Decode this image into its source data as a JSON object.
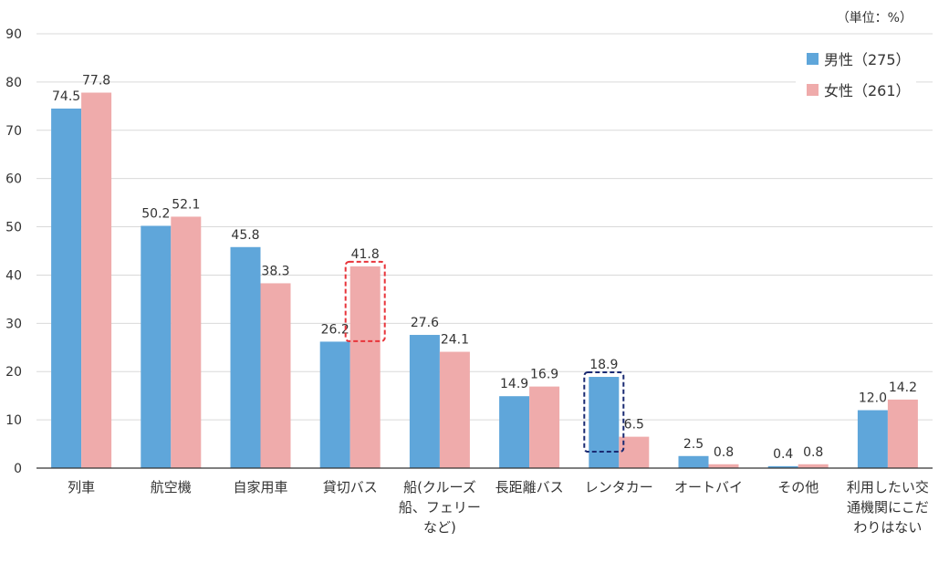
{
  "unit_note": "（単位：%）",
  "chart_data": {
    "type": "bar",
    "categories": [
      [
        "列車"
      ],
      [
        "航空機"
      ],
      [
        "自家用車"
      ],
      [
        "貸切バス"
      ],
      [
        "船(クルーズ",
        "船、フェリー",
        "など)"
      ],
      [
        "長距離バス"
      ],
      [
        "レンタカー"
      ],
      [
        "オートバイ"
      ],
      [
        "その他"
      ],
      [
        "利用したい交",
        "通機関にこだ",
        "わりはない"
      ]
    ],
    "series": [
      {
        "name": "男性（275）",
        "color": "#5fa6da",
        "values": [
          74.5,
          50.2,
          45.8,
          26.2,
          27.6,
          14.9,
          18.9,
          2.5,
          0.4,
          12.0
        ]
      },
      {
        "name": "女性（261）",
        "color": "#efabab",
        "values": [
          77.8,
          52.1,
          38.3,
          41.8,
          24.1,
          16.9,
          6.5,
          0.8,
          0.8,
          14.2
        ]
      }
    ],
    "ylim": [
      0,
      90
    ],
    "yticks": [
      0,
      10,
      20,
      30,
      40,
      50,
      60,
      70,
      80,
      90
    ],
    "grid": true,
    "legend": "top-right",
    "highlights": [
      {
        "category_index": 3,
        "series_index": 1,
        "color": "#e8343a"
      },
      {
        "category_index": 6,
        "series_index": 0,
        "color": "#1a2a72"
      }
    ]
  }
}
